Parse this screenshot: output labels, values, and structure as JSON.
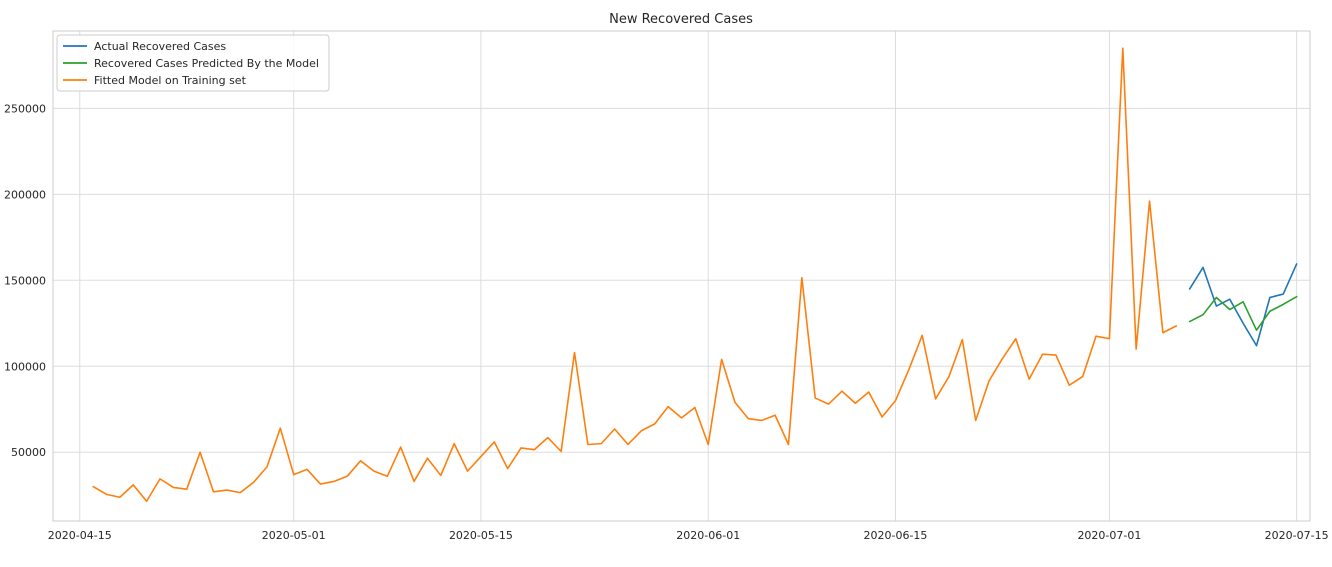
{
  "chart_data": {
    "type": "line",
    "title": "New Recovered Cases",
    "xlabel": "",
    "ylabel": "",
    "x_type": "date",
    "xlim": [
      "2020-04-13",
      "2020-07-16"
    ],
    "ylim": [
      10000,
      295000
    ],
    "x_ticks": [
      "2020-04-15",
      "2020-05-01",
      "2020-05-15",
      "2020-06-01",
      "2020-06-15",
      "2020-07-01",
      "2020-07-15"
    ],
    "y_ticks": [
      50000,
      100000,
      150000,
      200000,
      250000
    ],
    "grid": true,
    "legend_position": "top-left",
    "series": [
      {
        "name": "Actual Recovered Cases",
        "color": "#1f77b4",
        "points": [
          [
            "2020-07-07",
            145000
          ],
          [
            "2020-07-08",
            157500
          ],
          [
            "2020-07-09",
            135000
          ],
          [
            "2020-07-10",
            139000
          ],
          [
            "2020-07-11",
            125000
          ],
          [
            "2020-07-12",
            112000
          ],
          [
            "2020-07-13",
            140000
          ],
          [
            "2020-07-14",
            142000
          ],
          [
            "2020-07-15",
            159500
          ]
        ]
      },
      {
        "name": "Recovered Cases Predicted By the Model",
        "color": "#2ca02c",
        "points": [
          [
            "2020-07-07",
            126000
          ],
          [
            "2020-07-08",
            130000
          ],
          [
            "2020-07-09",
            140000
          ],
          [
            "2020-07-10",
            133000
          ],
          [
            "2020-07-11",
            137500
          ],
          [
            "2020-07-12",
            121000
          ],
          [
            "2020-07-13",
            132000
          ],
          [
            "2020-07-14",
            136000
          ],
          [
            "2020-07-15",
            140500
          ]
        ]
      },
      {
        "name": "Fitted Model on Training set",
        "color": "#ff7f0e",
        "points": [
          [
            "2020-04-16",
            30000
          ],
          [
            "2020-04-17",
            25500
          ],
          [
            "2020-04-18",
            23800
          ],
          [
            "2020-04-19",
            31000
          ],
          [
            "2020-04-20",
            21500
          ],
          [
            "2020-04-21",
            34500
          ],
          [
            "2020-04-22",
            29500
          ],
          [
            "2020-04-23",
            28500
          ],
          [
            "2020-04-24",
            50000
          ],
          [
            "2020-04-25",
            27000
          ],
          [
            "2020-04-26",
            28000
          ],
          [
            "2020-04-27",
            26500
          ],
          [
            "2020-04-28",
            32500
          ],
          [
            "2020-04-29",
            41500
          ],
          [
            "2020-04-30",
            64000
          ],
          [
            "2020-05-01",
            37000
          ],
          [
            "2020-05-02",
            40000
          ],
          [
            "2020-05-03",
            31500
          ],
          [
            "2020-05-04",
            33000
          ],
          [
            "2020-05-05",
            36000
          ],
          [
            "2020-05-06",
            45000
          ],
          [
            "2020-05-07",
            39000
          ],
          [
            "2020-05-08",
            36000
          ],
          [
            "2020-05-09",
            53000
          ],
          [
            "2020-05-10",
            33000
          ],
          [
            "2020-05-11",
            46500
          ],
          [
            "2020-05-12",
            36500
          ],
          [
            "2020-05-13",
            55000
          ],
          [
            "2020-05-14",
            39000
          ],
          [
            "2020-05-15",
            47500
          ],
          [
            "2020-05-16",
            56000
          ],
          [
            "2020-05-17",
            40500
          ],
          [
            "2020-05-18",
            52500
          ],
          [
            "2020-05-19",
            51500
          ],
          [
            "2020-05-20",
            58500
          ],
          [
            "2020-05-21",
            50500
          ],
          [
            "2020-05-22",
            108000
          ],
          [
            "2020-05-23",
            54500
          ],
          [
            "2020-05-24",
            55000
          ],
          [
            "2020-05-25",
            63500
          ],
          [
            "2020-05-26",
            54500
          ],
          [
            "2020-05-27",
            62500
          ],
          [
            "2020-05-28",
            66500
          ],
          [
            "2020-05-29",
            76500
          ],
          [
            "2020-05-30",
            70000
          ],
          [
            "2020-05-31",
            76000
          ],
          [
            "2020-06-01",
            54500
          ],
          [
            "2020-06-02",
            104000
          ],
          [
            "2020-06-03",
            79000
          ],
          [
            "2020-06-04",
            69500
          ],
          [
            "2020-06-05",
            68500
          ],
          [
            "2020-06-06",
            71500
          ],
          [
            "2020-06-07",
            54500
          ],
          [
            "2020-06-08",
            151500
          ],
          [
            "2020-06-09",
            81500
          ],
          [
            "2020-06-10",
            78000
          ],
          [
            "2020-06-11",
            85500
          ],
          [
            "2020-06-12",
            78500
          ],
          [
            "2020-06-13",
            85000
          ],
          [
            "2020-06-14",
            70500
          ],
          [
            "2020-06-15",
            80000
          ],
          [
            "2020-06-16",
            98000
          ],
          [
            "2020-06-17",
            118000
          ],
          [
            "2020-06-18",
            81000
          ],
          [
            "2020-06-19",
            94000
          ],
          [
            "2020-06-20",
            115500
          ],
          [
            "2020-06-21",
            68500
          ],
          [
            "2020-06-22",
            91500
          ],
          [
            "2020-06-23",
            104500
          ],
          [
            "2020-06-24",
            116000
          ],
          [
            "2020-06-25",
            92500
          ],
          [
            "2020-06-26",
            107000
          ],
          [
            "2020-06-27",
            106500
          ],
          [
            "2020-06-28",
            89000
          ],
          [
            "2020-06-29",
            94000
          ],
          [
            "2020-06-30",
            117500
          ],
          [
            "2020-07-01",
            116000
          ],
          [
            "2020-07-02",
            285000
          ],
          [
            "2020-07-03",
            110000
          ],
          [
            "2020-07-04",
            196000
          ],
          [
            "2020-07-05",
            119500
          ],
          [
            "2020-07-06",
            123500
          ]
        ]
      }
    ]
  }
}
